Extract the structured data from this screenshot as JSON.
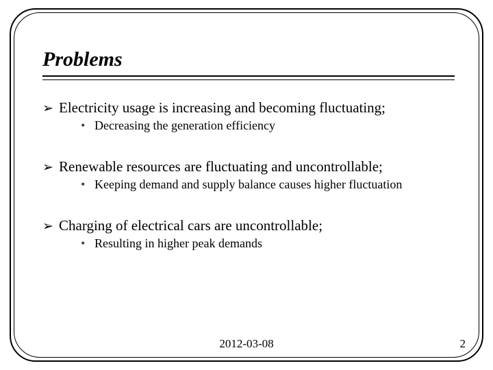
{
  "slide": {
    "title": "Problems",
    "title_fontsize": 30,
    "title_style": "bold italic",
    "body_fontsize_l1": 21,
    "body_fontsize_l2": 18,
    "bullet_l1_glyph": "➢",
    "bullet_l2_glyph": "•",
    "bullet_l2_color": "#5a4028",
    "text_color": "#000000",
    "background_color": "#ffffff",
    "border_color": "#000000",
    "border_radius": 38,
    "items": [
      {
        "text": "Electricity usage is increasing and becoming fluctuating;",
        "sub": "Decreasing the generation efficiency"
      },
      {
        "text": "Renewable resources are fluctuating and uncontrollable;",
        "sub": "Keeping demand and supply balance causes higher fluctuation"
      },
      {
        "text": "Charging of electrical cars are uncontrollable;",
        "sub": "Resulting in higher peak demands"
      }
    ],
    "footer_date": "2012-03-08",
    "footer_page": "2"
  }
}
